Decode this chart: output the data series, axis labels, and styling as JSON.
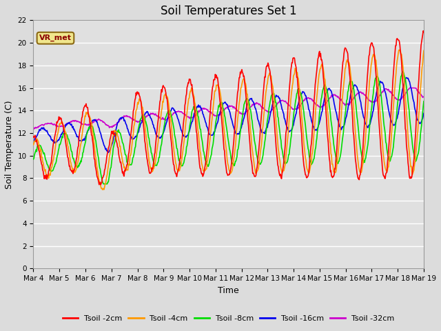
{
  "title": "Soil Temperatures Set 1",
  "xlabel": "Time",
  "ylabel": "Soil Temperature (C)",
  "ylim": [
    0,
    22
  ],
  "yticks": [
    0,
    2,
    4,
    6,
    8,
    10,
    12,
    14,
    16,
    18,
    20,
    22
  ],
  "xtick_labels": [
    "Mar 4",
    "Mar 5",
    "Mar 6",
    "Mar 7",
    "Mar 8",
    "Mar 9",
    "Mar 10",
    "Mar 11",
    "Mar 12",
    "Mar 13",
    "Mar 14",
    "Mar 15",
    "Mar 16",
    "Mar 17",
    "Mar 18",
    "Mar 19"
  ],
  "colors": {
    "Tsoil -2cm": "#ff0000",
    "Tsoil -4cm": "#ff9900",
    "Tsoil -8cm": "#00dd00",
    "Tsoil -16cm": "#0000ee",
    "Tsoil -32cm": "#cc00cc"
  },
  "legend_labels": [
    "Tsoil -2cm",
    "Tsoil -4cm",
    "Tsoil -8cm",
    "Tsoil -16cm",
    "Tsoil -32cm"
  ],
  "annotation_text": "VR_met",
  "annotation_color": "#8b0000",
  "background_color": "#dcdcdc",
  "plot_bg_color": "#e0e0e0",
  "grid_color": "#ffffff",
  "title_fontsize": 12,
  "axis_fontsize": 9,
  "tick_fontsize": 7.5,
  "line_width": 1.2
}
